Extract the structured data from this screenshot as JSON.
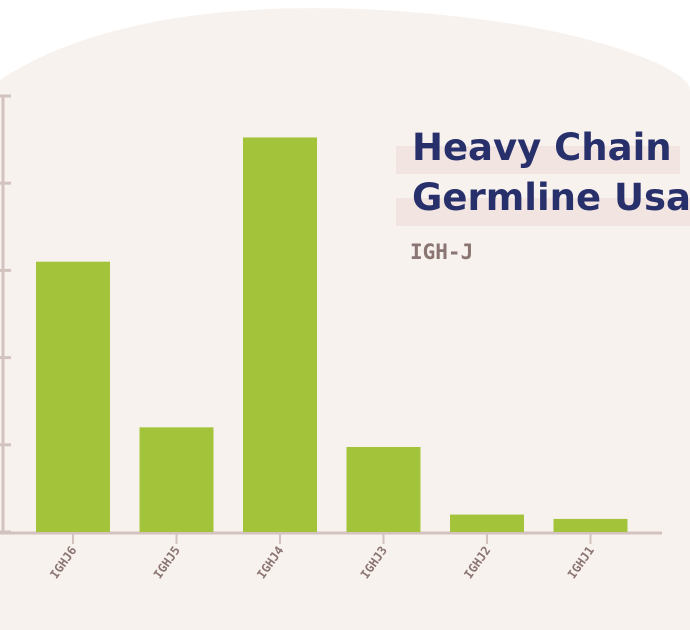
{
  "chart_data": {
    "type": "bar",
    "title_lines": [
      "Heavy Chain",
      "Germline Usage"
    ],
    "subtitle": "IGH-J",
    "categories": [
      "IGHJ6",
      "IGHJ5",
      "IGHJ4",
      "IGHJ3",
      "IGHJ2",
      "IGHJ1"
    ],
    "values": [
      62,
      24,
      90.5,
      19.5,
      4,
      3
    ],
    "ylim": [
      0,
      100
    ],
    "grid": false,
    "bar_color": "#a3c43a",
    "axis_color": "#d3c3bf",
    "background_blob_color": "#f8f2ee"
  }
}
